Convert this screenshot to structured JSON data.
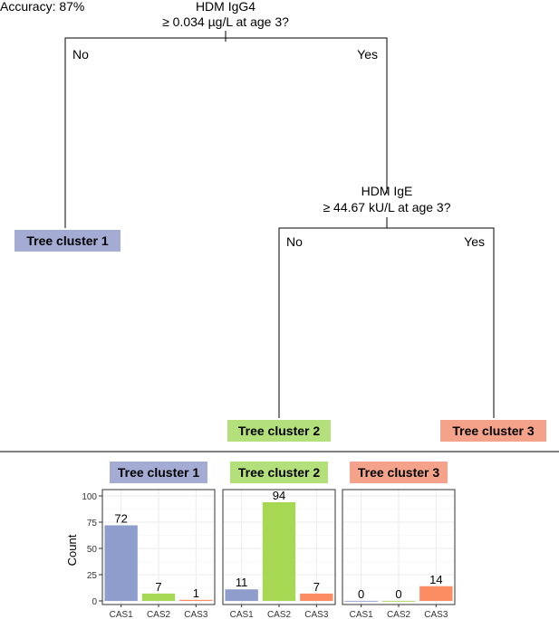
{
  "accuracy_label": "Accuracy: 87%",
  "tree": {
    "root": {
      "question_line1": "HDM IgG4",
      "question_line2": "≥ 0.034 µg/L at age 3?",
      "no_label": "No",
      "yes_label": "Yes"
    },
    "node2": {
      "question_line1": "HDM IgE",
      "question_line2": "≥ 44.67 kU/L at age 3?",
      "no_label": "No",
      "yes_label": "Yes"
    },
    "leaves": [
      {
        "label": "Tree cluster 1",
        "color": "#a4acd4"
      },
      {
        "label": "Tree cluster 2",
        "color": "#b3e07a"
      },
      {
        "label": "Tree cluster 3",
        "color": "#f4a38a"
      }
    ]
  },
  "chart_data": {
    "type": "bar",
    "ylabel": "Count",
    "ylim": [
      0,
      100
    ],
    "yticks": [
      0,
      25,
      50,
      75,
      100
    ],
    "categories": [
      "CAS1",
      "CAS2",
      "CAS3"
    ],
    "category_colors": [
      "#8e9dcc",
      "#a6d854",
      "#fc8d62"
    ],
    "panels": [
      {
        "title": "Tree cluster 1",
        "title_color": "#a4acd4",
        "values": [
          72,
          7,
          1
        ]
      },
      {
        "title": "Tree cluster 2",
        "title_color": "#b3e07a",
        "values": [
          11,
          94,
          7
        ]
      },
      {
        "title": "Tree cluster 3",
        "title_color": "#f4a38a",
        "values": [
          0,
          0,
          14
        ]
      }
    ]
  }
}
